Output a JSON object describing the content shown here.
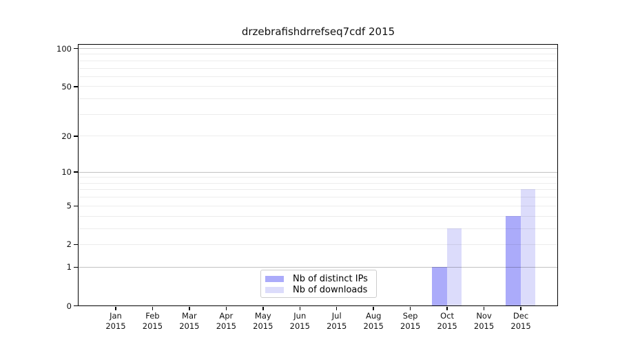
{
  "chart_data": {
    "type": "bar",
    "title": "drzebrafishdrrefseq7cdf 2015",
    "months": [
      "Jan",
      "Feb",
      "Mar",
      "Apr",
      "May",
      "Jun",
      "Jul",
      "Aug",
      "Sep",
      "Oct",
      "Nov",
      "Dec"
    ],
    "year_label": "2015",
    "categories": [
      "Jan 2015",
      "Feb 2015",
      "Mar 2015",
      "Apr 2015",
      "May 2015",
      "Jun 2015",
      "Jul 2015",
      "Aug 2015",
      "Sep 2015",
      "Oct 2015",
      "Nov 2015",
      "Dec 2015"
    ],
    "series": [
      {
        "name": "Nb of distinct IPs",
        "color": "#ABABFA",
        "values": [
          0,
          0,
          0,
          0,
          0,
          0,
          0,
          0,
          0,
          1,
          0,
          4
        ]
      },
      {
        "name": "Nb of downloads",
        "color": "#DCDCFB",
        "values": [
          0,
          0,
          0,
          0,
          0,
          0,
          0,
          0,
          0,
          3,
          0,
          7
        ]
      }
    ],
    "y_ticks": [
      100,
      50,
      20,
      10,
      5,
      2,
      1,
      0
    ],
    "gridlines": {
      "major": [
        1,
        10,
        100
      ],
      "minor": [
        2,
        3,
        4,
        5,
        6,
        7,
        8,
        9,
        20,
        30,
        40,
        50,
        60,
        70,
        80,
        90
      ]
    },
    "scale": "log1p",
    "ylim": [
      0,
      106
    ],
    "xlabel": "",
    "ylabel": "",
    "legend_position": "bottom-center-inside",
    "grid": "horizontal-only"
  },
  "colors": {
    "bar_distinct_ips": "#ABABFA",
    "bar_downloads": "#DCDCFB",
    "axis_spine": "#000000",
    "legend_border": "#cccccc",
    "background": "#ffffff"
  }
}
